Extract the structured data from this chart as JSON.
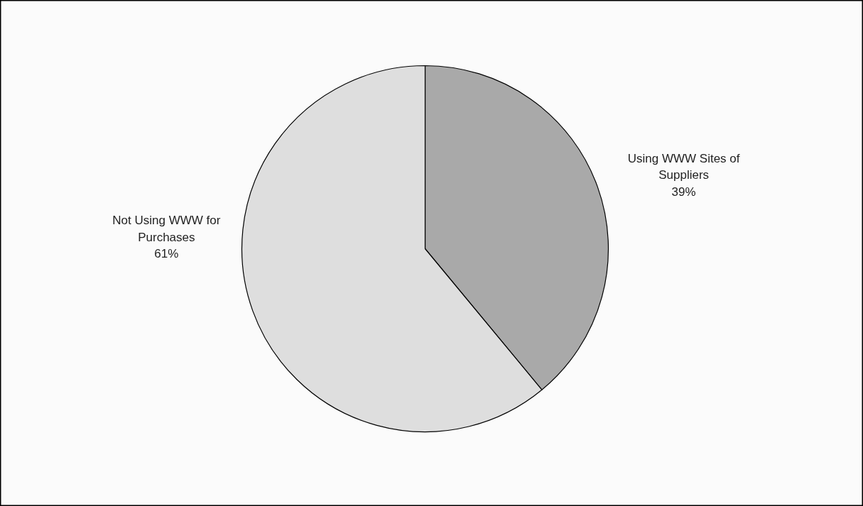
{
  "chart_data": {
    "type": "pie",
    "categories": [
      "Using WWW Sites of Suppliers",
      "Not Using WWW for Purchases"
    ],
    "values": [
      39,
      61
    ],
    "colors": [
      "#a9a9a9",
      "#dedede"
    ],
    "value_labels": [
      "39%",
      "61%"
    ]
  }
}
